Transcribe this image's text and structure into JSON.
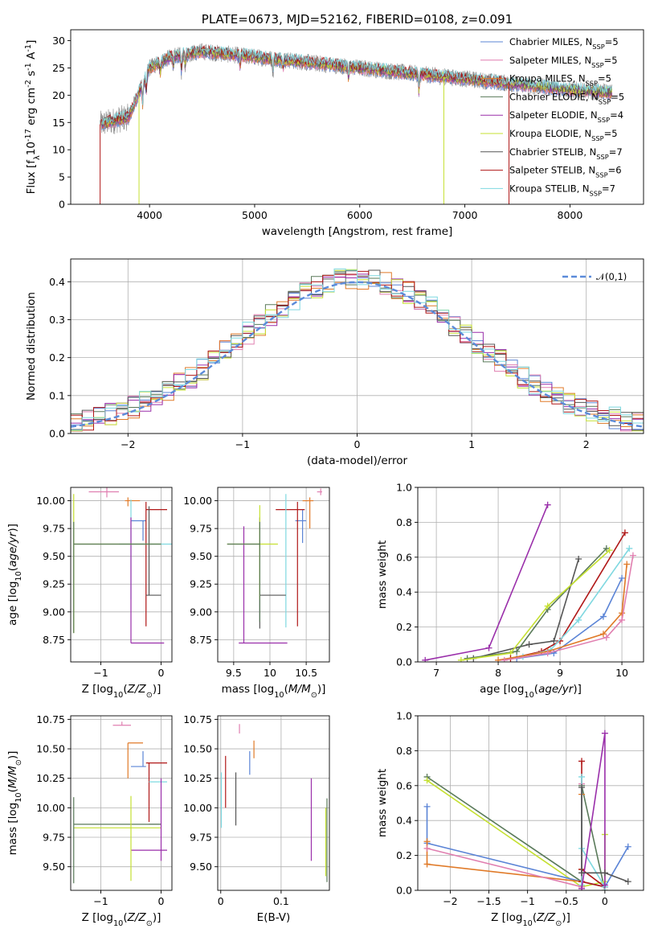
{
  "colors": {
    "Chabrier MILES": "#5b84d6",
    "Salpeter MILES": "#e07fb0",
    "Kroupa MILES": "#e07a28",
    "Chabrier ELODIE": "#5a7a5a",
    "Salpeter ELODIE": "#9a2faa",
    "Kroupa ELODIE": "#c5e032",
    "Chabrier STELIB": "#555555",
    "Salpeter STELIB": "#b01818",
    "Kroupa STELIB": "#7fd8e0",
    "gauss": "#5b8bd9"
  },
  "chart_data": [
    {
      "id": "spectrum",
      "type": "line",
      "title": "PLATE=0673, MJD=52162, FIBERID=0108, z=0.091",
      "xlabel": "wavelength [Angstrom, rest frame]",
      "ylabel": "Flux [f$_\\lambda$10$^{-17}$ erg cm$^{-2}$ s$^{-1}$ A$^{-1}$]",
      "xlim": [
        3250,
        8700
      ],
      "ylim": [
        0,
        32
      ],
      "xticks": [
        4000,
        5000,
        6000,
        7000,
        8000
      ],
      "yticks": [
        0,
        5,
        10,
        15,
        20,
        25,
        30
      ],
      "legend_position": "top-right",
      "data_envelope": {
        "x": [
          3500,
          3600,
          3800,
          4000,
          4200,
          4500,
          5000,
          5500,
          6000,
          6500,
          7000,
          7500,
          8000,
          8400
        ],
        "y": [
          14.5,
          15,
          16,
          25,
          27,
          28,
          27,
          26,
          25,
          24,
          23,
          22,
          21,
          20.5
        ]
      },
      "model_drops": [
        {
          "series": "Salpeter STELIB",
          "x": 3530
        },
        {
          "series": "Kroupa ELODIE",
          "x": 3900
        },
        {
          "series": "Kroupa ELODIE",
          "x": 6800
        },
        {
          "series": "Salpeter STELIB",
          "x": 7420
        }
      ],
      "series": [
        {
          "name": "Chabrier MILES, N$_{SSP}$=5",
          "key": "Chabrier MILES"
        },
        {
          "name": "Salpeter MILES, N$_{SSP}$=5",
          "key": "Salpeter MILES"
        },
        {
          "name": "Kroupa MILES, N$_{SSP}$=5",
          "key": "Kroupa MILES"
        },
        {
          "name": "Chabrier ELODIE, N$_{SSP}$=5",
          "key": "Chabrier ELODIE"
        },
        {
          "name": "Salpeter ELODIE, N$_{SSP}$=4",
          "key": "Salpeter ELODIE"
        },
        {
          "name": "Kroupa ELODIE, N$_{SSP}$=5",
          "key": "Kroupa ELODIE"
        },
        {
          "name": "Chabrier STELIB, N$_{SSP}$=7",
          "key": "Chabrier STELIB"
        },
        {
          "name": "Salpeter STELIB, N$_{SSP}$=6",
          "key": "Salpeter STELIB"
        },
        {
          "name": "Kroupa STELIB, N$_{SSP}$=7",
          "key": "Kroupa STELIB"
        }
      ]
    },
    {
      "id": "residuals",
      "type": "area",
      "xlabel": "(data-model)/error",
      "ylabel": "Normed distribution",
      "xlim": [
        -2.5,
        2.5
      ],
      "ylim": [
        0,
        0.46
      ],
      "xticks": [
        -2,
        -1,
        0,
        1,
        2
      ],
      "yticks": [
        0.0,
        0.1,
        0.2,
        0.3,
        0.4
      ],
      "legend": "$\\mathcal{N}(0,1)$",
      "legend_position": "top-right",
      "bin_width": 0.1,
      "series_keys": [
        "Chabrier MILES",
        "Salpeter MILES",
        "Kroupa MILES",
        "Chabrier ELODIE",
        "Salpeter ELODIE",
        "Kroupa ELODIE",
        "Chabrier STELIB",
        "Salpeter STELIB",
        "Kroupa STELIB"
      ]
    },
    {
      "id": "age-vs-Z",
      "type": "scatter",
      "xlabel": "Z [log$_{10}$($Z/Z_\\odot$)]",
      "ylabel": "age  [log$_{10}$($age/yr$)]",
      "xlim": [
        -1.5,
        0.18
      ],
      "ylim": [
        8.55,
        10.12
      ],
      "xticks": [
        -1,
        0
      ],
      "yticks": [
        8.75,
        9.0,
        9.25,
        9.5,
        9.75,
        10.0
      ],
      "points": [
        {
          "key": "Salpeter MILES",
          "x": -0.9,
          "xerr": [
            0.3,
            0.2
          ],
          "y": 10.08,
          "yerr": [
            0.05,
            0.06
          ]
        },
        {
          "key": "Kroupa MILES",
          "x": -0.55,
          "xerr": [
            0.05,
            0.2
          ],
          "y": 10.0,
          "yerr": [
            0.05,
            0.03
          ]
        },
        {
          "key": "Chabrier MILES",
          "x": -0.3,
          "xerr": [
            0.2,
            0.05
          ],
          "y": 9.82,
          "yerr": [
            0.18,
            0.0
          ]
        },
        {
          "key": "Salpeter STELIB",
          "x": -0.25,
          "xerr": [
            0.0,
            0.35
          ],
          "y": 9.92,
          "yerr": [
            1.05,
            0.07
          ]
        },
        {
          "key": "Kroupa STELIB",
          "x": -0.5,
          "xerr": [
            0.2,
            0.7
          ],
          "y": 9.61,
          "yerr": [
            0.5,
            0.4
          ]
        },
        {
          "key": "Chabrier STELIB",
          "x": -0.2,
          "xerr": [
            0.05,
            0.2
          ],
          "y": 9.15,
          "yerr": [
            0.0,
            0.8
          ]
        },
        {
          "key": "Salpeter ELODIE",
          "x": -0.5,
          "xerr": [
            0.0,
            0.55
          ],
          "y": 8.72,
          "yerr": [
            0.0,
            1.13
          ]
        },
        {
          "key": "Kroupa ELODIE",
          "x": -1.45,
          "xerr": [
            0.0,
            1.45
          ],
          "y": 9.61,
          "yerr": [
            0.8,
            0.45
          ]
        },
        {
          "key": "Chabrier ELODIE",
          "x": -1.45,
          "xerr": [
            0.0,
            1.45
          ],
          "y": 9.61,
          "yerr": [
            0.8,
            0.2
          ]
        }
      ]
    },
    {
      "id": "age-vs-mass",
      "type": "scatter",
      "xlabel": "mass [log$_{10}$($M/M_\\odot$)]",
      "ylabel": "",
      "xlim": [
        9.28,
        10.82
      ],
      "ylim": [
        8.55,
        10.12
      ],
      "xticks": [
        9.5,
        10.0,
        10.5
      ],
      "yticks": [
        8.75,
        9.0,
        9.25,
        9.5,
        9.75,
        10.0
      ],
      "points": [
        {
          "key": "Salpeter MILES",
          "x": 10.7,
          "xerr": [
            0.05,
            0.02
          ],
          "y": 10.08,
          "yerr": [
            0.03,
            0.03
          ]
        },
        {
          "key": "Kroupa MILES",
          "x": 10.55,
          "xerr": [
            0.1,
            0.05
          ],
          "y": 10.0,
          "yerr": [
            0.25,
            0.03
          ]
        },
        {
          "key": "Chabrier MILES",
          "x": 10.45,
          "xerr": [
            0.1,
            0.05
          ],
          "y": 9.82,
          "yerr": [
            0.2,
            0.1
          ]
        },
        {
          "key": "Salpeter STELIB",
          "x": 10.38,
          "xerr": [
            0.3,
            0.1
          ],
          "y": 9.92,
          "yerr": [
            1.05,
            0.07
          ]
        },
        {
          "key": "Kroupa STELIB",
          "x": 10.22,
          "xerr": [
            0.0,
            0.0
          ],
          "y": 9.61,
          "yerr": [
            0.75,
            0.45
          ]
        },
        {
          "key": "Chabrier STELIB",
          "x": 9.86,
          "xerr": [
            0.0,
            0.36
          ],
          "y": 9.15,
          "yerr": [
            0.3,
            0.7
          ]
        },
        {
          "key": "Salpeter ELODIE",
          "x": 9.64,
          "xerr": [
            0.07,
            0.6
          ],
          "y": 8.72,
          "yerr": [
            0.0,
            1.05
          ]
        },
        {
          "key": "Kroupa ELODIE",
          "x": 9.86,
          "xerr": [
            0.45,
            0.25
          ],
          "y": 9.61,
          "yerr": [
            0.5,
            0.35
          ]
        },
        {
          "key": "Chabrier ELODIE",
          "x": 9.86,
          "xerr": [
            0.45,
            0.0
          ],
          "y": 9.61,
          "yerr": [
            0.7,
            0.2
          ]
        }
      ]
    },
    {
      "id": "weight-vs-age",
      "type": "line",
      "xlabel": "age  [log$_{10}$($age/yr$)]",
      "ylabel": "mass weight",
      "xlim": [
        6.7,
        10.35
      ],
      "ylim": [
        0,
        1
      ],
      "xticks": [
        7,
        8,
        9,
        10
      ],
      "yticks": [
        0.0,
        0.2,
        0.4,
        0.6,
        0.8,
        1.0
      ],
      "series": [
        {
          "key": "Salpeter ELODIE",
          "x": [
            6.82,
            7.85,
            8.8
          ],
          "y": [
            0.01,
            0.08,
            0.9
          ]
        },
        {
          "key": "Chabrier STELIB",
          "x": [
            7.6,
            8.5,
            8.9,
            9.3
          ],
          "y": [
            0.02,
            0.1,
            0.12,
            0.59
          ]
        },
        {
          "key": "Chabrier ELODIE",
          "x": [
            7.5,
            8.3,
            8.8,
            9.75
          ],
          "y": [
            0.02,
            0.06,
            0.3,
            0.65
          ]
        },
        {
          "key": "Kroupa ELODIE",
          "x": [
            7.4,
            8.2,
            8.8,
            9.8
          ],
          "y": [
            0.01,
            0.05,
            0.32,
            0.64
          ]
        },
        {
          "key": "Salpeter STELIB",
          "x": [
            8.2,
            8.7,
            9.0,
            10.05
          ],
          "y": [
            0.02,
            0.06,
            0.12,
            0.74
          ]
        },
        {
          "key": "Chabrier MILES",
          "x": [
            8.3,
            8.9,
            9.7,
            10.0
          ],
          "y": [
            0.02,
            0.05,
            0.26,
            0.48
          ]
        },
        {
          "key": "Kroupa STELIB",
          "x": [
            8.4,
            8.85,
            9.3,
            10.12
          ],
          "y": [
            0.03,
            0.07,
            0.24,
            0.65
          ]
        },
        {
          "key": "Kroupa MILES",
          "x": [
            8.0,
            8.8,
            9.7,
            10.0,
            10.08
          ],
          "y": [
            0.01,
            0.06,
            0.16,
            0.28,
            0.56
          ]
        },
        {
          "key": "Salpeter MILES",
          "x": [
            8.1,
            8.8,
            9.75,
            10.0,
            10.18
          ],
          "y": [
            0.01,
            0.05,
            0.14,
            0.24,
            0.61
          ]
        }
      ]
    },
    {
      "id": "mass-vs-Z",
      "type": "scatter",
      "xlabel": "Z [log$_{10}$($Z/Z_\\odot$)]",
      "ylabel": "mass [log$_{10}$($M/M_\\odot$)]",
      "xlim": [
        -1.5,
        0.18
      ],
      "ylim": [
        9.3,
        10.78
      ],
      "xticks": [
        -1,
        0
      ],
      "yticks": [
        9.5,
        9.75,
        10.0,
        10.25,
        10.5,
        10.75
      ],
      "points": [
        {
          "key": "Salpeter MILES",
          "x": -0.65,
          "xerr": [
            0.15,
            0.15
          ],
          "y": 10.7,
          "yerr": [
            0.0,
            0.03
          ]
        },
        {
          "key": "Kroupa MILES",
          "x": -0.55,
          "xerr": [
            0.0,
            0.25
          ],
          "y": 10.55,
          "yerr": [
            0.3,
            0.0
          ]
        },
        {
          "key": "Chabrier MILES",
          "x": -0.3,
          "xerr": [
            0.2,
            0.05
          ],
          "y": 10.35,
          "yerr": [
            0.0,
            0.13
          ]
        },
        {
          "key": "Salpeter STELIB",
          "x": -0.2,
          "xerr": [
            0.05,
            0.3
          ],
          "y": 10.38,
          "yerr": [
            0.5,
            0.0
          ]
        },
        {
          "key": "Kroupa STELIB",
          "x": -0.1,
          "xerr": [
            0.1,
            0.2
          ],
          "y": 10.22,
          "yerr": [
            0.0,
            0.0
          ]
        },
        {
          "key": "Chabrier STELIB",
          "x": -0.2,
          "xerr": [
            0.0,
            0.2
          ],
          "y": 9.86,
          "yerr": [
            0.0,
            0.0
          ]
        },
        {
          "key": "Salpeter ELODIE",
          "x": -0.5,
          "xerr": [
            0.0,
            0.6
          ],
          "y": 9.64,
          "yerr": [
            0.0,
            0.0
          ]
        },
        {
          "key": "Kroupa ELODIE",
          "x": -1.45,
          "xerr": [
            0.0,
            1.45
          ],
          "y": 9.83,
          "yerr": [
            0.0,
            0.0
          ]
        },
        {
          "key": "Chabrier ELODIE",
          "x": -1.45,
          "xerr": [
            0.0,
            1.45
          ],
          "y": 9.86,
          "yerr": [
            0.5,
            0.23
          ]
        },
        {
          "key": "Salpeter ELODIE",
          "x": 0.0,
          "xerr": [
            0.0,
            0.0
          ],
          "y": 9.85,
          "yerr": [
            0.3,
            0.4
          ]
        },
        {
          "key": "Kroupa ELODIE",
          "x": -0.5,
          "xerr": [
            0.0,
            0.0
          ],
          "y": 9.83,
          "yerr": [
            0.45,
            0.27
          ]
        }
      ]
    },
    {
      "id": "mass-vs-ebv",
      "type": "scatter",
      "xlabel": "E(B-V)",
      "ylabel": "",
      "xlim": [
        -0.005,
        0.18
      ],
      "ylim": [
        9.3,
        10.78
      ],
      "xticks": [
        0.0,
        0.1
      ],
      "yticks": [
        9.5,
        9.75,
        10.0,
        10.25,
        10.5,
        10.75
      ],
      "points": [
        {
          "key": "Salpeter MILES",
          "x": 0.031,
          "y": 10.63,
          "yerr": [
            0.0,
            0.08
          ]
        },
        {
          "key": "Kroupa MILES",
          "x": 0.055,
          "y": 10.42,
          "yerr": [
            0.0,
            0.15
          ]
        },
        {
          "key": "Chabrier MILES",
          "x": 0.048,
          "y": 10.38,
          "yerr": [
            0.1,
            0.1
          ]
        },
        {
          "key": "Salpeter STELIB",
          "x": 0.008,
          "y": 10.2,
          "yerr": [
            0.2,
            0.24
          ]
        },
        {
          "key": "Chabrier STELIB",
          "x": 0.025,
          "y": 10.1,
          "yerr": [
            0.25,
            0.2
          ]
        },
        {
          "key": "Kroupa STELIB",
          "x": 0.001,
          "y": 10.1,
          "yerr": [
            0.27,
            0.2
          ]
        },
        {
          "key": "Salpeter ELODIE",
          "x": 0.15,
          "y": 9.9,
          "yerr": [
            0.35,
            0.35
          ]
        },
        {
          "key": "Chabrier ELODIE",
          "x": 0.176,
          "y": 9.72,
          "yerr": [
            0.35,
            0.36
          ]
        },
        {
          "key": "Kroupa ELODIE",
          "x": 0.174,
          "y": 9.7,
          "yerr": [
            0.28,
            0.3
          ]
        }
      ]
    },
    {
      "id": "weight-vs-Z",
      "type": "line",
      "xlabel": "Z [log$_{10}$($Z/Z_\\odot$)]",
      "ylabel": "mass weight",
      "xlim": [
        -2.42,
        0.5
      ],
      "ylim": [
        0,
        1
      ],
      "xticks": [
        -2.0,
        -1.5,
        -1.0,
        -0.5,
        0.0
      ],
      "yticks": [
        0.0,
        0.2,
        0.4,
        0.6,
        0.8,
        1.0
      ],
      "series": [
        {
          "key": "Chabrier ELODIE",
          "x": [
            -2.3,
            -0.3,
            -0.3,
            0.0
          ],
          "y": [
            0.65,
            0.05,
            0.6,
            0.0
          ]
        },
        {
          "key": "Kroupa ELODIE",
          "x": [
            -2.3,
            -0.3,
            0.0,
            0.0
          ],
          "y": [
            0.63,
            0.02,
            0.05,
            0.32
          ]
        },
        {
          "key": "Chabrier MILES",
          "x": [
            -2.3,
            -2.3,
            -0.3,
            0.0,
            0.3
          ],
          "y": [
            0.48,
            0.27,
            0.05,
            0.02,
            0.25
          ]
        },
        {
          "key": "Kroupa MILES",
          "x": [
            -2.3,
            -2.3,
            -0.3,
            -0.3,
            -0.3
          ],
          "y": [
            0.28,
            0.15,
            0.05,
            0.55,
            0.12
          ]
        },
        {
          "key": "Salpeter MILES",
          "x": [
            -2.3,
            -0.3,
            -0.3
          ],
          "y": [
            0.24,
            0.02,
            0.61
          ]
        },
        {
          "key": "Salpeter STELIB",
          "x": [
            -0.3,
            -0.3,
            0.0,
            -0.3
          ],
          "y": [
            0.74,
            0.05,
            0.02,
            0.12
          ]
        },
        {
          "key": "Kroupa STELIB",
          "x": [
            -0.3,
            -0.3,
            -0.3,
            0.0
          ],
          "y": [
            0.65,
            0.03,
            0.24,
            0.02
          ]
        },
        {
          "key": "Salpeter ELODIE",
          "x": [
            -0.3,
            0.0,
            0.0
          ],
          "y": [
            0.01,
            0.9,
            0.03
          ]
        },
        {
          "key": "Chabrier STELIB",
          "x": [
            -0.3,
            -0.3,
            0.0,
            0.3
          ],
          "y": [
            0.59,
            0.1,
            0.1,
            0.05
          ]
        }
      ]
    }
  ]
}
